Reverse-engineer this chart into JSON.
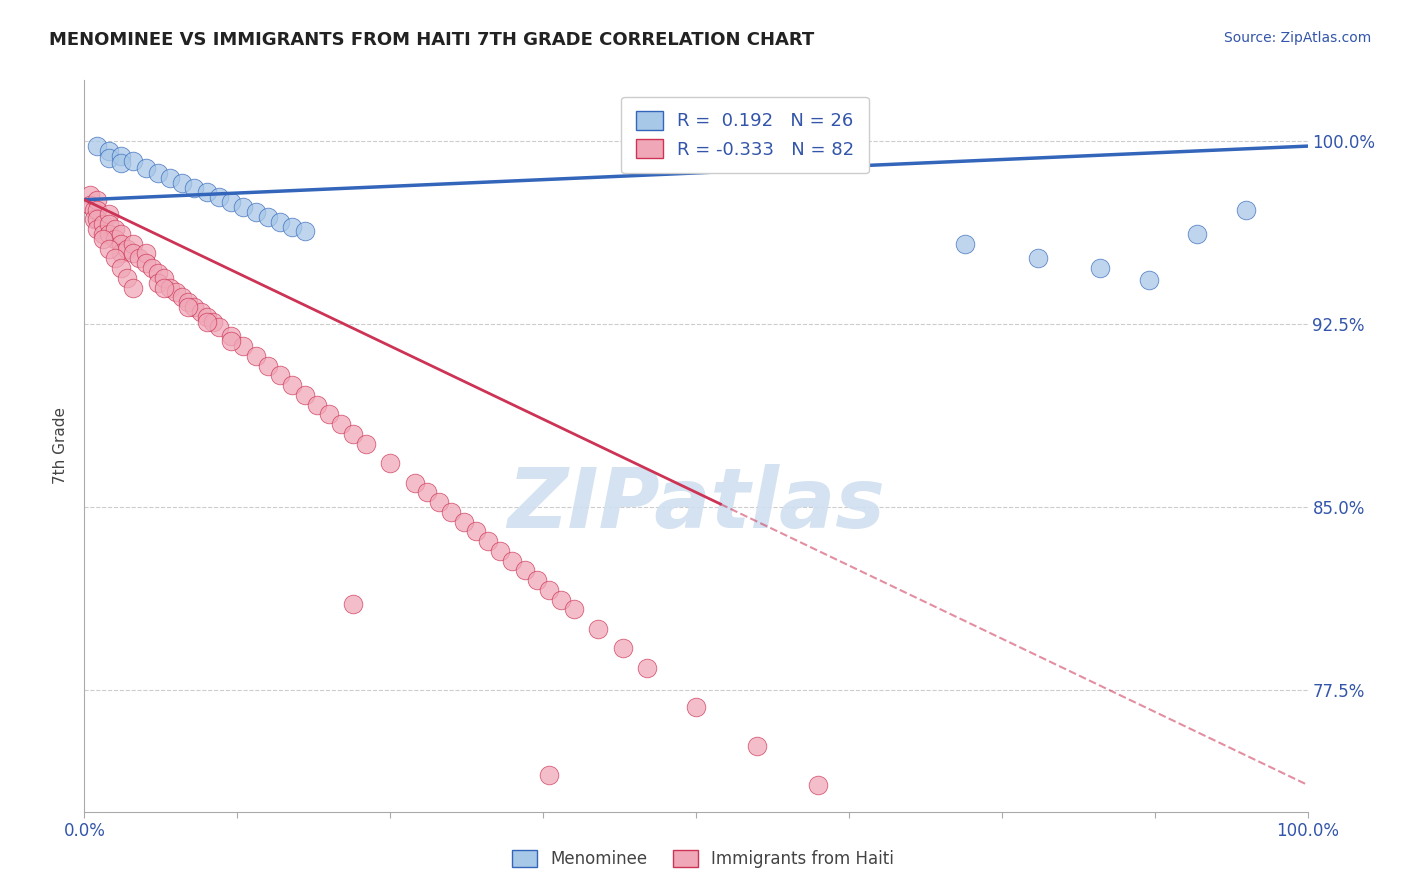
{
  "title": "MENOMINEE VS IMMIGRANTS FROM HAITI 7TH GRADE CORRELATION CHART",
  "source": "Source: ZipAtlas.com",
  "ylabel": "7th Grade",
  "ytick_labels": [
    "100.0%",
    "92.5%",
    "85.0%",
    "77.5%"
  ],
  "ytick_values": [
    1.0,
    0.925,
    0.85,
    0.775
  ],
  "ylim": [
    0.725,
    1.025
  ],
  "xlim": [
    0.0,
    1.0
  ],
  "legend_blue_label": "Menominee",
  "legend_pink_label": "Immigrants from Haiti",
  "R_blue": 0.192,
  "N_blue": 26,
  "R_pink": -0.333,
  "N_pink": 82,
  "blue_color": "#a8c8e8",
  "pink_color": "#f0a8b8",
  "trendline_blue_color": "#3366bb",
  "trendline_pink_color": "#cc3355",
  "watermark_color": "#d0dff0",
  "grid_color": "#cccccc",
  "title_color": "#222222",
  "axis_label_color": "#3355aa",
  "blue_scatter_x": [
    0.01,
    0.02,
    0.02,
    0.03,
    0.03,
    0.04,
    0.05,
    0.06,
    0.07,
    0.08,
    0.09,
    0.1,
    0.11,
    0.12,
    0.13,
    0.14,
    0.15,
    0.16,
    0.17,
    0.18,
    0.72,
    0.78,
    0.83,
    0.87,
    0.91,
    0.95
  ],
  "blue_scatter_y": [
    0.998,
    0.996,
    0.993,
    0.994,
    0.991,
    0.992,
    0.989,
    0.987,
    0.985,
    0.983,
    0.981,
    0.979,
    0.977,
    0.975,
    0.973,
    0.971,
    0.969,
    0.967,
    0.965,
    0.963,
    0.958,
    0.952,
    0.948,
    0.943,
    0.962,
    0.972
  ],
  "pink_scatter_x": [
    0.005,
    0.005,
    0.008,
    0.008,
    0.01,
    0.01,
    0.01,
    0.01,
    0.015,
    0.015,
    0.02,
    0.02,
    0.02,
    0.025,
    0.025,
    0.03,
    0.03,
    0.03,
    0.035,
    0.04,
    0.04,
    0.045,
    0.05,
    0.05,
    0.055,
    0.06,
    0.06,
    0.065,
    0.07,
    0.075,
    0.08,
    0.085,
    0.09,
    0.095,
    0.1,
    0.105,
    0.11,
    0.12,
    0.13,
    0.14,
    0.15,
    0.16,
    0.17,
    0.18,
    0.19,
    0.2,
    0.21,
    0.22,
    0.23,
    0.25,
    0.27,
    0.28,
    0.29,
    0.3,
    0.31,
    0.32,
    0.33,
    0.34,
    0.35,
    0.36,
    0.37,
    0.38,
    0.39,
    0.4,
    0.42,
    0.44,
    0.46,
    0.5,
    0.55,
    0.6,
    0.065,
    0.085,
    0.1,
    0.12,
    0.015,
    0.02,
    0.025,
    0.03,
    0.035,
    0.04,
    0.22,
    0.38
  ],
  "pink_scatter_y": [
    0.978,
    0.974,
    0.972,
    0.968,
    0.976,
    0.972,
    0.968,
    0.964,
    0.966,
    0.962,
    0.97,
    0.966,
    0.962,
    0.964,
    0.96,
    0.962,
    0.958,
    0.954,
    0.956,
    0.958,
    0.954,
    0.952,
    0.954,
    0.95,
    0.948,
    0.946,
    0.942,
    0.944,
    0.94,
    0.938,
    0.936,
    0.934,
    0.932,
    0.93,
    0.928,
    0.926,
    0.924,
    0.92,
    0.916,
    0.912,
    0.908,
    0.904,
    0.9,
    0.896,
    0.892,
    0.888,
    0.884,
    0.88,
    0.876,
    0.868,
    0.86,
    0.856,
    0.852,
    0.848,
    0.844,
    0.84,
    0.836,
    0.832,
    0.828,
    0.824,
    0.82,
    0.816,
    0.812,
    0.808,
    0.8,
    0.792,
    0.784,
    0.768,
    0.752,
    0.736,
    0.94,
    0.932,
    0.926,
    0.918,
    0.96,
    0.956,
    0.952,
    0.948,
    0.944,
    0.94,
    0.81,
    0.74
  ],
  "blue_trend_x0": 0.0,
  "blue_trend_y0": 0.976,
  "blue_trend_x1": 1.0,
  "blue_trend_y1": 0.998,
  "pink_trend_x0": 0.0,
  "pink_trend_y0": 0.976,
  "pink_trend_x1_solid": 0.52,
  "pink_trend_x1": 1.0,
  "pink_trend_y1": 0.736
}
